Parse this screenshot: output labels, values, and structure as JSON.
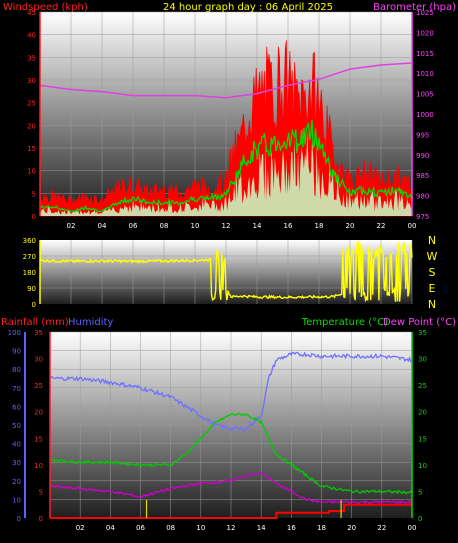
{
  "header": {
    "title": "24 hour graph day : 06 April 2025",
    "left_label": "Windspeed (kph)",
    "right_label": "Barometer (hpa)"
  },
  "bottom_header": {
    "rainfall_label": "Rainfall (mm)",
    "humidity_label": "Humidity",
    "temperature_label": "Temperature (°C)",
    "dewpoint_label": "Dew Point (°C)"
  },
  "colors": {
    "wind": "#ff0000",
    "gust_avg": "#00dd00",
    "wind_light": "#c8ffc8",
    "barometer": "#e040e0",
    "direction": "#ffff00",
    "humidity": "#7070ff",
    "temperature": "#00cc00",
    "dewpoint": "#cc00cc",
    "rain": "#ff0000",
    "rain_rate": "#dddd00"
  },
  "chart_data": [
    {
      "type": "area",
      "name": "wind-and-barometer",
      "x_ticks": [
        "02",
        "04",
        "06",
        "08",
        "10",
        "12",
        "14",
        "16",
        "18",
        "20",
        "22",
        "00"
      ],
      "x_range": [
        0,
        24
      ],
      "ylim_left": [
        0,
        45
      ],
      "yticks_left": [
        0,
        5,
        10,
        15,
        20,
        25,
        30,
        35,
        40,
        45
      ],
      "ylim_right": [
        975,
        1025
      ],
      "yticks_right": [
        975,
        980,
        985,
        990,
        995,
        1000,
        1005,
        1010,
        1015,
        1020,
        1025
      ],
      "wind_gust": {
        "x": [
          0,
          1,
          2,
          3,
          4,
          5,
          6,
          7,
          8,
          9,
          10,
          11,
          12,
          12.5,
          13,
          13.5,
          14,
          14.5,
          15,
          15.5,
          16,
          16.5,
          17,
          17.5,
          18,
          18.5,
          19,
          19.5,
          20,
          21,
          22,
          23,
          24
        ],
        "y": [
          5,
          5,
          4,
          5,
          4,
          7,
          8,
          6,
          7,
          6,
          8,
          7,
          9,
          16,
          20,
          28,
          30,
          33,
          32,
          35,
          34,
          30,
          31,
          33,
          30,
          22,
          15,
          12,
          9,
          11,
          9,
          10,
          8
        ]
      },
      "wind_avg": {
        "x": [
          0,
          1,
          2,
          3,
          4,
          5,
          6,
          7,
          8,
          9,
          10,
          11,
          12,
          12.5,
          13,
          13.5,
          14,
          14.5,
          15,
          15.5,
          16,
          16.5,
          17,
          17.5,
          18,
          18.5,
          19,
          19.5,
          20,
          21,
          22,
          23,
          24
        ],
        "y": [
          2,
          2,
          1,
          2,
          1,
          3,
          4,
          3,
          3,
          3,
          4,
          4,
          5,
          8,
          11,
          14,
          15,
          16,
          16,
          17,
          18,
          17,
          18,
          19,
          17,
          13,
          9,
          7,
          5,
          6,
          5,
          6,
          4
        ]
      },
      "barometer": {
        "x": [
          0,
          2,
          4,
          6,
          8,
          10,
          12,
          14,
          16,
          18,
          20,
          22,
          24
        ],
        "y": [
          1007,
          1006,
          1005.5,
          1004.5,
          1004.5,
          1004.5,
          1004,
          1005,
          1007,
          1008.5,
          1011,
          1012,
          1012.5
        ]
      }
    },
    {
      "type": "scatter",
      "name": "wind-direction",
      "ylim": [
        0,
        360
      ],
      "yticks": [
        0,
        90,
        180,
        270,
        360
      ],
      "compass": [
        "N",
        "W",
        "S",
        "E",
        "N"
      ],
      "x": [
        0,
        2,
        4,
        6,
        8,
        10,
        11,
        11.4,
        11.6,
        12,
        12.3,
        13,
        14,
        16,
        18,
        19,
        19.5,
        20,
        22,
        24
      ],
      "y": [
        245,
        240,
        242,
        240,
        242,
        245,
        250,
        100,
        240,
        45,
        40,
        45,
        40,
        38,
        40,
        42,
        60,
        300,
        290,
        280
      ]
    },
    {
      "type": "line",
      "name": "rain-humidity-temperature",
      "ylim_left_humidity": [
        0,
        100
      ],
      "yticks_humidity": [
        0,
        10,
        20,
        30,
        40,
        50,
        60,
        70,
        80,
        90,
        100
      ],
      "ylim_left_rain": [
        0,
        35
      ],
      "yticks_rain": [
        0,
        5,
        10,
        15,
        20,
        25,
        30,
        35
      ],
      "ylim_right": [
        0,
        35
      ],
      "yticks_right": [
        0,
        5,
        10,
        15,
        20,
        25,
        30,
        35
      ],
      "humidity": {
        "x": [
          0,
          2,
          4,
          6,
          8,
          9,
          10,
          11,
          12,
          13,
          14,
          14.5,
          15,
          16,
          17,
          18,
          19,
          20,
          22,
          24
        ],
        "y": [
          75,
          75,
          73,
          70,
          65,
          60,
          55,
          50,
          48,
          48,
          55,
          75,
          85,
          88,
          88,
          87,
          87,
          87,
          87,
          85
        ]
      },
      "temperature": {
        "x": [
          0,
          2,
          4,
          6,
          8,
          9,
          10,
          11,
          12,
          13,
          14,
          15,
          16,
          17,
          18,
          19,
          20,
          22,
          24
        ],
        "y": [
          11,
          10.5,
          10.5,
          10,
          10,
          12,
          15,
          18,
          19.5,
          19.5,
          18,
          12,
          10,
          8,
          6,
          5.5,
          5,
          5,
          4.8
        ]
      },
      "dewpoint": {
        "x": [
          0,
          2,
          4,
          6,
          8,
          10,
          12,
          13,
          14,
          15,
          16,
          17,
          18,
          19,
          20,
          22,
          24
        ],
        "y": [
          6,
          5.5,
          5,
          4,
          5.5,
          6.5,
          7,
          8,
          8.5,
          6.5,
          5,
          3.5,
          3,
          3,
          3,
          3,
          3
        ]
      },
      "rain_total": {
        "x": [
          0,
          14.8,
          15,
          18,
          18.5,
          19.5,
          24
        ],
        "y": [
          0,
          0,
          1,
          1,
          1.3,
          2.5,
          2.5
        ]
      },
      "rain_rate_marks": [
        6.4,
        19.3
      ]
    }
  ]
}
